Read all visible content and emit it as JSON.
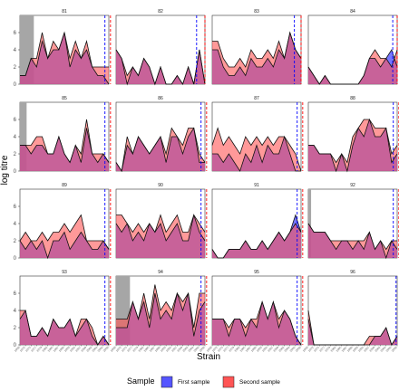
{
  "chart_data": {
    "type": "area",
    "ylabel": "log titre",
    "xlabel": "Strain",
    "ylim": [
      0,
      8
    ],
    "yticks": [
      0,
      2,
      4,
      6
    ],
    "n_strains": 17,
    "strain_labels": [
      "1968",
      "1972",
      "1975",
      "1977",
      "1979",
      "1982",
      "1985",
      "1987",
      "1989",
      "1993",
      "1995",
      "1997",
      "1999",
      "2002",
      "2004",
      "2006",
      "2008"
    ],
    "colors": {
      "first": "#5555ff",
      "second": "#ff5555",
      "first_line": "#0000ff",
      "second_line": "#ff0000",
      "shade": "#a6a6a6"
    },
    "legend": {
      "title": "Sample",
      "items": [
        "First sample",
        "Second sample"
      ],
      "position": "bottom"
    },
    "panels": [
      {
        "id": "81",
        "first": [
          1,
          1,
          3,
          2,
          5,
          3,
          4,
          4,
          6,
          2,
          4,
          3,
          4,
          2,
          1,
          1,
          0
        ],
        "second": [
          1,
          1,
          3,
          3,
          6,
          3,
          5,
          4,
          6,
          3,
          5,
          3,
          5,
          2,
          2,
          2,
          2
        ],
        "shade": [
          0,
          2.5
        ],
        "dash_first": 15.3,
        "dash_second": 16.3
      },
      {
        "id": "82",
        "first": [
          4,
          3,
          0,
          2,
          1,
          3,
          2,
          0,
          2,
          0,
          0,
          1,
          0,
          2,
          0,
          4,
          0
        ],
        "second": [
          4,
          3,
          1,
          2,
          1,
          3,
          2,
          0,
          2,
          0,
          0,
          1,
          0,
          2,
          0,
          4,
          0
        ],
        "shade": null,
        "dash_first": 14.5,
        "dash_second": 16.0
      },
      {
        "id": "83",
        "first": [
          4,
          4,
          2,
          1,
          1,
          2,
          1,
          3,
          2,
          2,
          3,
          2,
          4,
          3,
          6,
          4,
          3
        ],
        "second": [
          5,
          5,
          3,
          2,
          2,
          3,
          2,
          4,
          3,
          3,
          4,
          3,
          5,
          3,
          6,
          4,
          3
        ],
        "shade": null,
        "dash_first": 14.8,
        "dash_second": 16.0
      },
      {
        "id": "84",
        "first": [
          2,
          1,
          0,
          1,
          0,
          0,
          0,
          0,
          0,
          0,
          1,
          3,
          3,
          2,
          3,
          4,
          2
        ],
        "second": [
          2,
          1,
          0,
          1,
          0,
          0,
          0,
          0,
          0,
          0,
          1,
          3,
          4,
          3,
          3,
          2,
          4
        ],
        "shade": null,
        "dash_first": 15.2,
        "dash_second": 16.0
      },
      {
        "id": "85",
        "first": [
          3,
          3,
          2,
          3,
          3,
          2,
          2,
          4,
          2,
          1,
          3,
          1,
          5,
          2,
          1,
          2,
          1
        ],
        "second": [
          3,
          3,
          3,
          4,
          4,
          2,
          2,
          4,
          2,
          1,
          3,
          2,
          6,
          2,
          2,
          2,
          1
        ],
        "shade": [
          0,
          1.2
        ],
        "dash_first": 15.3,
        "dash_second": 16.3
      },
      {
        "id": "86",
        "first": [
          1,
          0,
          3,
          2,
          4,
          3,
          2,
          3,
          4,
          1,
          4,
          4,
          2,
          4,
          5,
          1,
          1
        ],
        "second": [
          1,
          0,
          4,
          2,
          4,
          3,
          2,
          3,
          4,
          2,
          5,
          4,
          3,
          5,
          5,
          2,
          1
        ],
        "shade": null,
        "dash_first": 15.3,
        "dash_second": 16.3
      },
      {
        "id": "87",
        "first": [
          2,
          2,
          1,
          2,
          1,
          0,
          2,
          1,
          3,
          1,
          3,
          2,
          2,
          4,
          2,
          0,
          0
        ],
        "second": [
          3,
          5,
          3,
          4,
          3,
          2,
          4,
          3,
          4,
          3,
          4,
          3,
          4,
          4,
          3,
          2,
          0
        ],
        "shade": null,
        "dash_first": 15.3,
        "dash_second": 16.3
      },
      {
        "id": "88",
        "first": [
          3,
          3,
          2,
          2,
          2,
          0,
          2,
          0,
          3,
          5,
          4,
          6,
          4,
          4,
          5,
          1,
          2
        ],
        "second": [
          3,
          3,
          2,
          2,
          2,
          1,
          2,
          1,
          4,
          5,
          6,
          6,
          5,
          5,
          5,
          2,
          3
        ],
        "shade": null,
        "dash_first": 15.3,
        "dash_second": 16.3
      },
      {
        "id": "89",
        "first": [
          2,
          1,
          2,
          1,
          2,
          0,
          2,
          2,
          3,
          1,
          2,
          3,
          2,
          1,
          1,
          2,
          1
        ],
        "second": [
          2,
          3,
          2,
          2,
          3,
          2,
          3,
          3,
          4,
          3,
          4,
          5,
          2,
          2,
          2,
          2,
          1
        ],
        "shade": null,
        "dash_first": 15.3,
        "dash_second": 16.3
      },
      {
        "id": "90",
        "first": [
          4,
          3,
          4,
          2,
          3,
          2,
          4,
          3,
          4,
          2,
          3,
          4,
          2,
          2,
          5,
          3,
          2
        ],
        "second": [
          5,
          5,
          4,
          3,
          4,
          3,
          4,
          3,
          5,
          3,
          4,
          5,
          3,
          3,
          5,
          4,
          3
        ],
        "shade": null,
        "dash_first": 15.3,
        "dash_second": 16.3
      },
      {
        "id": "91",
        "first": [
          1,
          0,
          0,
          1,
          1,
          1,
          2,
          1,
          1,
          2,
          1,
          2,
          3,
          2,
          3,
          5,
          3
        ],
        "second": [
          1,
          0,
          0,
          1,
          1,
          1,
          2,
          1,
          1,
          2,
          1,
          2,
          3,
          2,
          3,
          4,
          3
        ],
        "shade": null,
        "dash_first": 15.3,
        "dash_second": 16.3
      },
      {
        "id": "92",
        "first": [
          4,
          3,
          3,
          3,
          2,
          1,
          2,
          2,
          1,
          2,
          1,
          3,
          1,
          2,
          0,
          2,
          1
        ],
        "second": [
          4,
          3,
          3,
          3,
          2,
          2,
          2,
          2,
          2,
          2,
          2,
          3,
          1,
          2,
          1,
          2,
          2
        ],
        "shade": [
          0,
          0.5
        ],
        "dash_first": 15.3,
        "dash_second": 16.3
      },
      {
        "id": "93",
        "first": [
          3,
          4,
          1,
          1,
          2,
          1,
          3,
          2,
          2,
          3,
          1,
          2,
          3,
          1,
          0,
          1,
          0
        ],
        "second": [
          4,
          4,
          1,
          1,
          2,
          1,
          3,
          2,
          2,
          3,
          1,
          3,
          3,
          2,
          0,
          1,
          0
        ],
        "shade": null,
        "dash_first": 15.3,
        "dash_second": 16.3
      },
      {
        "id": "94",
        "first": [
          2,
          2,
          2,
          5,
          3,
          5,
          2,
          6,
          3,
          4,
          3,
          6,
          4,
          6,
          1,
          4,
          5
        ],
        "second": [
          3,
          3,
          3,
          5,
          3,
          6,
          3,
          7,
          4,
          5,
          4,
          6,
          5,
          6,
          2,
          6,
          6
        ],
        "shade": [
          0,
          2.5
        ],
        "dash_first": 15.3,
        "dash_second": 16.3
      },
      {
        "id": "95",
        "first": [
          3,
          3,
          3,
          1,
          3,
          3,
          1,
          3,
          2,
          5,
          3,
          5,
          2,
          4,
          3,
          1,
          0
        ],
        "second": [
          3,
          3,
          3,
          2,
          3,
          3,
          2,
          3,
          3,
          5,
          3,
          5,
          3,
          4,
          3,
          1,
          0
        ],
        "shade": null,
        "dash_first": 15.3,
        "dash_second": 16.3
      },
      {
        "id": "96",
        "first": [
          3,
          0,
          0,
          0,
          0,
          0,
          0,
          0,
          0,
          0,
          0,
          0,
          1,
          1,
          2,
          0,
          1
        ],
        "second": [
          4,
          0,
          0,
          0,
          0,
          0,
          0,
          0,
          0,
          0,
          0,
          1,
          1,
          1,
          2,
          0,
          1
        ],
        "shade": null,
        "dash_first": 15.8,
        "dash_second": 16.5
      }
    ]
  }
}
